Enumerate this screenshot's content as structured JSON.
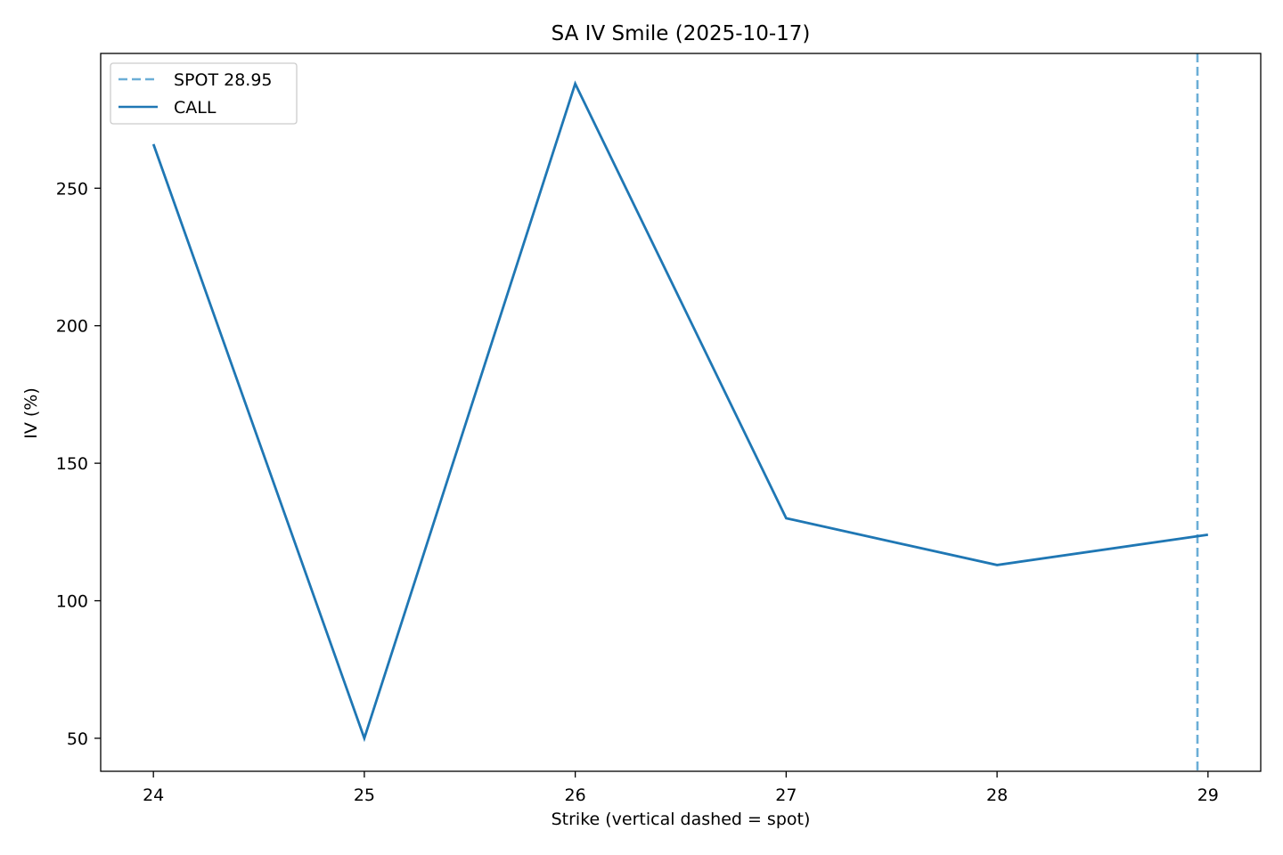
{
  "chart_data": {
    "type": "line",
    "title": "SA IV Smile (2025-10-17)",
    "xlabel": "Strike (vertical dashed = spot)",
    "ylabel": "IV (%)",
    "xlim": [
      23.75,
      29.25
    ],
    "ylim": [
      38,
      299
    ],
    "xticks": [
      24,
      25,
      26,
      27,
      28,
      29
    ],
    "yticks": [
      50,
      100,
      150,
      200,
      250
    ],
    "grid": false,
    "legend_position": "top-left",
    "series": [
      {
        "name": "CALL",
        "color": "#1f77b4",
        "style": "solid",
        "x": [
          24,
          25,
          26,
          27,
          28,
          29
        ],
        "y": [
          266,
          50,
          288,
          130,
          113,
          124
        ]
      }
    ],
    "reference_lines": [
      {
        "name": "SPOT 28.95",
        "orientation": "vertical",
        "x": 28.95,
        "color": "#6baed6",
        "style": "dashed"
      }
    ]
  }
}
